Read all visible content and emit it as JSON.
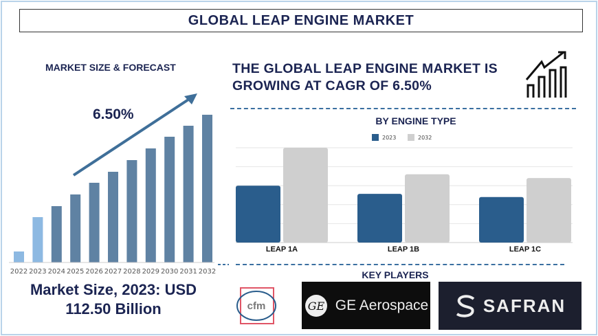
{
  "title": "GLOBAL LEAP ENGINE MARKET",
  "left_panel": {
    "heading": "MARKET SIZE & FORECAST",
    "cagr_label": "6.50%",
    "market_size": "Market Size, 2023: USD 112.50 Billion"
  },
  "headline": "THE GLOBAL LEAP ENGINE MARKET IS GROWING AT CAGR OF 6.50%",
  "icons": {
    "growth": "growth-chart-icon"
  },
  "key_players": {
    "heading": "KEY PLAYERS",
    "players": [
      "cfm",
      "GE Aerospace",
      "SAFRAN"
    ]
  },
  "colors": {
    "navy": "#1b2452",
    "bar_hist": "#8db9e2",
    "bar_forecast": "#5f82a3",
    "series_2023": "#2a5d8c",
    "series_2032": "#cfcfcf"
  },
  "chart_data": [
    {
      "type": "bar",
      "title": "MARKET SIZE & FORECAST",
      "categories": [
        "2022",
        "2023",
        "2024",
        "2025",
        "2026",
        "2027",
        "2028",
        "2029",
        "2030",
        "2031",
        "2032"
      ],
      "values": [
        16,
        66,
        82,
        99,
        116,
        132,
        149,
        166,
        183,
        199,
        215
      ],
      "value_units": "relative (no axis printed)",
      "historical": [
        "2022",
        "2023"
      ],
      "annotation": "6.50%",
      "grid": false
    },
    {
      "type": "bar",
      "title": "BY ENGINE TYPE",
      "categories": [
        "LEAP 1A",
        "LEAP 1B",
        "LEAP 1C"
      ],
      "series": [
        {
          "name": "2023",
          "values": [
            3.0,
            2.57,
            2.4
          ]
        },
        {
          "name": "2032",
          "values": [
            5.0,
            3.6,
            3.4
          ]
        }
      ],
      "ylim": [
        0,
        5
      ],
      "value_units": "relative (no axis printed)",
      "grid": true,
      "legend": "top-center"
    }
  ]
}
